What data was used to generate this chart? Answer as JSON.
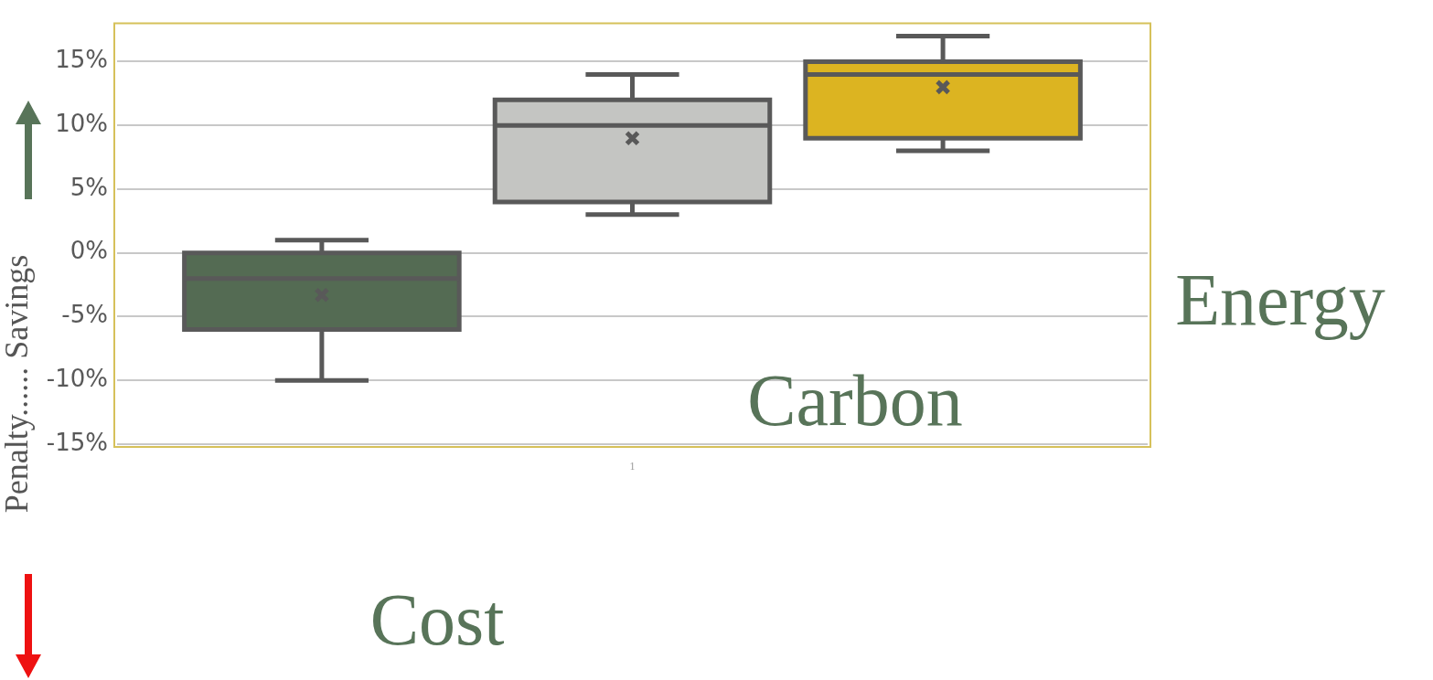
{
  "chart_data": {
    "type": "box",
    "ylabel": "Penalty...... Savings",
    "categories": [
      "1"
    ],
    "ylim": [
      -15,
      18
    ],
    "yticks": [
      {
        "value": -15,
        "label": "-15%"
      },
      {
        "value": -10,
        "label": "-10%"
      },
      {
        "value": -5,
        "label": "-5%"
      },
      {
        "value": 0,
        "label": "0%"
      },
      {
        "value": 5,
        "label": "5%"
      },
      {
        "value": 10,
        "label": "10%"
      },
      {
        "value": 15,
        "label": "15%"
      }
    ],
    "grid": "y",
    "series": [
      {
        "name": "Cost",
        "color": "#546b53",
        "boxes": [
          {
            "low": -10,
            "q1": -6,
            "median": -2,
            "q3": 0,
            "high": 1,
            "mean": -3.3
          }
        ]
      },
      {
        "name": "Carbon",
        "color": "#c4c5c2",
        "boxes": [
          {
            "low": 3,
            "q1": 4,
            "median": 10,
            "q3": 12,
            "high": 14,
            "mean": 9
          }
        ]
      },
      {
        "name": "Energy",
        "color": "#dcb421",
        "boxes": [
          {
            "low": 8,
            "q1": 9,
            "median": 14,
            "q3": 15,
            "high": 17,
            "mean": 13
          }
        ]
      }
    ]
  }
}
